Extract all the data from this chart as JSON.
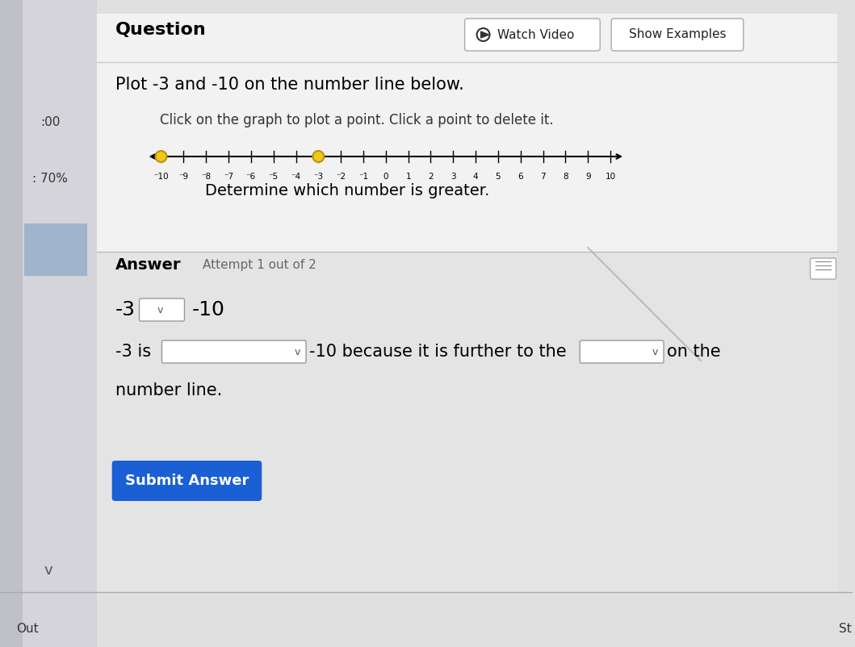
{
  "bg_color": "#e0e0e0",
  "main_bg": "#f0f0f0",
  "panel_bg": "#ffffff",
  "answer_panel_bg": "#e8e8e8",
  "title": "Question",
  "watch_video_text": "Watch Video",
  "show_examples_text": "Show Examples",
  "plot_instruction": "Plot -3 and -10 on the number line below.",
  "click_instruction": "Click on the graph to plot a point. Click a point to delete it.",
  "determine_text": "Determine which number is greater.",
  "answer_label": "Answer",
  "attempt_text": "Attempt 1 out of 2",
  "line1_left": "-3",
  "line1_right": "-10",
  "line2_start": "-3 is",
  "line2_end": "-10 because it is further to the",
  "line2_final": "on the",
  "line3": "number line.",
  "submit_text": "Submit Answer",
  "number_line_min": -10,
  "number_line_max": 10,
  "points": [
    -10,
    -3
  ],
  "point_color": "#f5c518",
  "point_edge_color": "#b8960a",
  "left_text1": ":00",
  "left_text2": ": 70%",
  "out_text": "Out",
  "st_text": "St"
}
